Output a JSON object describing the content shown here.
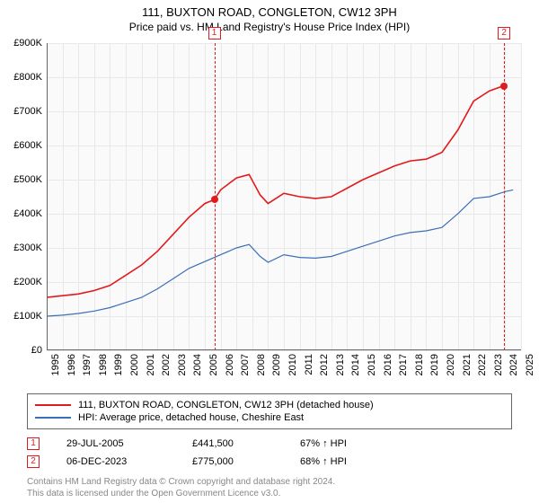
{
  "title": "111, BUXTON ROAD, CONGLETON, CW12 3PH",
  "subtitle": "Price paid vs. HM Land Registry's House Price Index (HPI)",
  "chart": {
    "type": "line",
    "background_color": "#fafafa",
    "grid_color": "#e8e8e8",
    "axis_color": "#666666",
    "y": {
      "min": 0,
      "max": 900000,
      "step": 100000,
      "ticks": [
        0,
        100000,
        200000,
        300000,
        400000,
        500000,
        600000,
        700000,
        800000,
        900000
      ],
      "labels": [
        "£0",
        "£100K",
        "£200K",
        "£300K",
        "£400K",
        "£500K",
        "£600K",
        "£700K",
        "£800K",
        "£900K"
      ],
      "label_fontsize": 11
    },
    "x": {
      "min": 1995,
      "max": 2025,
      "step": 1,
      "ticks": [
        1995,
        1996,
        1997,
        1998,
        1999,
        2000,
        2001,
        2002,
        2003,
        2004,
        2005,
        2006,
        2007,
        2008,
        2009,
        2010,
        2011,
        2012,
        2013,
        2014,
        2015,
        2016,
        2017,
        2018,
        2019,
        2020,
        2021,
        2022,
        2023,
        2024,
        2025
      ],
      "labels": [
        "1995",
        "1996",
        "1997",
        "1998",
        "1999",
        "2000",
        "2001",
        "2002",
        "2003",
        "2004",
        "2005",
        "2006",
        "2007",
        "2008",
        "2009",
        "2010",
        "2011",
        "2012",
        "2013",
        "2014",
        "2015",
        "2016",
        "2017",
        "2018",
        "2019",
        "2020",
        "2021",
        "2022",
        "2023",
        "2024",
        "2025"
      ],
      "label_fontsize": 11,
      "label_rotation": -90
    },
    "series": [
      {
        "name": "property",
        "label": "111, BUXTON ROAD, CONGLETON, CW12 3PH (detached house)",
        "color": "#e31a1c",
        "line_width": 1.6,
        "x": [
          1995,
          1996,
          1997,
          1998,
          1999,
          2000,
          2001,
          2002,
          2003,
          2004,
          2005,
          2005.6,
          2006,
          2007,
          2007.8,
          2008.5,
          2009,
          2010,
          2011,
          2012,
          2013,
          2014,
          2015,
          2016,
          2017,
          2018,
          2019,
          2020,
          2021,
          2022,
          2023,
          2023.9,
          2024.1
        ],
        "y": [
          155000,
          160000,
          165000,
          175000,
          190000,
          220000,
          250000,
          290000,
          340000,
          390000,
          430000,
          441500,
          470000,
          505000,
          515000,
          455000,
          430000,
          460000,
          450000,
          445000,
          450000,
          475000,
          500000,
          520000,
          540000,
          555000,
          560000,
          580000,
          645000,
          730000,
          760000,
          775000,
          780000
        ]
      },
      {
        "name": "hpi",
        "label": "HPI: Average price, detached house, Cheshire East",
        "color": "#3b6fb6",
        "line_width": 1.2,
        "x": [
          1995,
          1996,
          1997,
          1998,
          1999,
          2000,
          2001,
          2002,
          2003,
          2004,
          2005,
          2006,
          2007,
          2007.8,
          2008.5,
          2009,
          2010,
          2011,
          2012,
          2013,
          2014,
          2015,
          2016,
          2017,
          2018,
          2019,
          2020,
          2021,
          2022,
          2023,
          2024,
          2024.5
        ],
        "y": [
          100000,
          103000,
          108000,
          115000,
          125000,
          140000,
          155000,
          180000,
          210000,
          240000,
          260000,
          280000,
          300000,
          310000,
          275000,
          258000,
          280000,
          272000,
          270000,
          275000,
          290000,
          305000,
          320000,
          335000,
          345000,
          350000,
          360000,
          400000,
          445000,
          450000,
          465000,
          470000
        ]
      }
    ],
    "markers": [
      {
        "n": "1",
        "x": 2005.6,
        "y": 441500,
        "color": "#e31a1c"
      },
      {
        "n": "2",
        "x": 2023.93,
        "y": 775000,
        "color": "#e31a1c"
      }
    ]
  },
  "legend": {
    "border_color": "#666666",
    "fontsize": 11
  },
  "sales": [
    {
      "n": "1",
      "date": "29-JUL-2005",
      "price": "£441,500",
      "hpi": "67% ↑ HPI",
      "color": "#e31a1c"
    },
    {
      "n": "2",
      "date": "06-DEC-2023",
      "price": "£775,000",
      "hpi": "68% ↑ HPI",
      "color": "#e31a1c"
    }
  ],
  "footnote": {
    "line1": "Contains HM Land Registry data © Crown copyright and database right 2024.",
    "line2": "This data is licensed under the Open Government Licence v3.0.",
    "color": "#888888",
    "fontsize": 10
  }
}
